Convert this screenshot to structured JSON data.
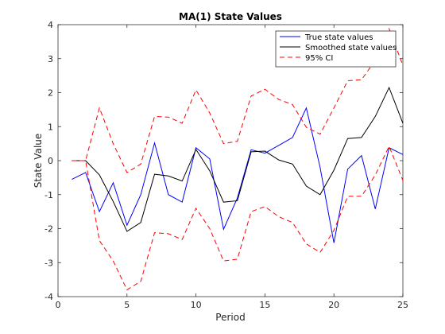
{
  "chart_data": {
    "type": "line",
    "title": "MA(1) State Values",
    "xlabel": "Period",
    "ylabel": "State Value",
    "xlim": [
      0,
      25
    ],
    "ylim": [
      -4,
      4
    ],
    "xticks": [
      0,
      5,
      10,
      15,
      20,
      25
    ],
    "yticks": [
      -4,
      -3,
      -2,
      -1,
      0,
      1,
      2,
      3,
      4
    ],
    "x": [
      1,
      2,
      3,
      4,
      5,
      6,
      7,
      8,
      9,
      10,
      11,
      12,
      13,
      14,
      15,
      16,
      17,
      18,
      19,
      20,
      21,
      22,
      23,
      24,
      25
    ],
    "series": [
      {
        "name": "True state values",
        "color": "#0000ff",
        "dash": "solid",
        "values": [
          -0.55,
          -0.35,
          -1.5,
          -0.65,
          -1.9,
          -1.0,
          0.52,
          -1.0,
          -1.22,
          0.38,
          0.05,
          -2.02,
          -1.1,
          0.32,
          0.22,
          0.45,
          0.68,
          1.55,
          -0.2,
          -2.42,
          -0.25,
          0.15,
          -1.42,
          0.38,
          0.18
        ]
      },
      {
        "name": "Smoothed state values",
        "color": "#000000",
        "dash": "solid",
        "values": [
          0.0,
          0.0,
          -0.42,
          -1.2,
          -2.08,
          -1.82,
          -0.4,
          -0.45,
          -0.6,
          0.33,
          -0.3,
          -1.22,
          -1.18,
          0.26,
          0.28,
          0.02,
          -0.1,
          -0.75,
          -1.0,
          -0.28,
          0.65,
          0.68,
          1.3,
          2.15,
          1.1
        ]
      },
      {
        "name": "95% CI",
        "color": "#ff0000",
        "dash": "dashed",
        "values": [
          0.0,
          0.0,
          1.55,
          0.5,
          -0.35,
          -0.1,
          1.3,
          1.28,
          1.1,
          2.08,
          1.4,
          0.5,
          0.57,
          1.9,
          2.1,
          1.8,
          1.65,
          0.98,
          0.78,
          1.55,
          2.35,
          2.38,
          2.95,
          3.88,
          2.8
        ]
      },
      {
        "name": "95% CI lower",
        "color": "#ff0000",
        "dash": "dashed",
        "values": [
          0.0,
          0.0,
          -2.35,
          -2.95,
          -3.8,
          -3.55,
          -2.12,
          -2.15,
          -2.32,
          -1.4,
          -2.0,
          -2.95,
          -2.9,
          -1.5,
          -1.35,
          -1.65,
          -1.82,
          -2.45,
          -2.7,
          -2.05,
          -1.05,
          -1.05,
          -0.42,
          0.42,
          -0.58
        ]
      }
    ],
    "legend": {
      "placement": "top-right",
      "entries": [
        "True state values",
        "Smoothed state values",
        "95% CI"
      ]
    },
    "grid": false
  }
}
